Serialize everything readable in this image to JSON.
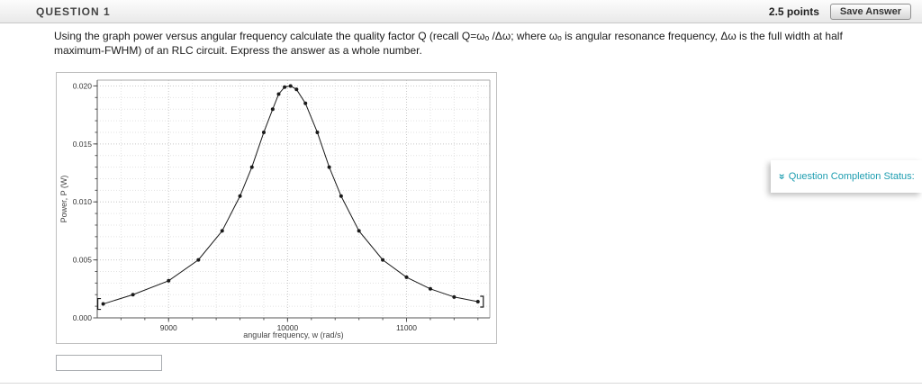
{
  "header": {
    "title": "QUESTION 1",
    "points": "2.5 points",
    "save_button": "Save Answer"
  },
  "question": {
    "text": "Using the graph power versus angular frequency calculate the quality factor Q (recall Q=ωₒ /Δω; where ωₒ is angular resonance  frequency, Δω is the full width at half maximum-FWHM) of an RLC circuit. Express the answer as a whole number."
  },
  "chart_data": {
    "type": "line",
    "title": "",
    "xlabel": "angular frequency, w (rad/s)",
    "ylabel": "Power, P (W)",
    "xlim": [
      8400,
      11700
    ],
    "ylim": [
      0,
      0.0205
    ],
    "grid": true,
    "x_ticks": {
      "values": [
        9000,
        10000,
        11000
      ],
      "labels": [
        "9000",
        "10000",
        "11000"
      ]
    },
    "y_ticks": {
      "values": [
        0,
        0.005,
        0.01,
        0.015,
        0.02
      ],
      "labels": [
        "0.000",
        "0.005",
        "0.010",
        "0.015",
        "0.020"
      ]
    },
    "x_minor_step": 200,
    "y_minor_step": 0.001,
    "range_brackets": true,
    "series": [
      {
        "name": "power",
        "marker": "dot",
        "color": "#1a1a1a",
        "points": [
          [
            8450,
            0.0012
          ],
          [
            8700,
            0.002
          ],
          [
            9000,
            0.0032
          ],
          [
            9250,
            0.005
          ],
          [
            9450,
            0.0075
          ],
          [
            9600,
            0.0105
          ],
          [
            9700,
            0.013
          ],
          [
            9800,
            0.016
          ],
          [
            9875,
            0.018
          ],
          [
            9925,
            0.0193
          ],
          [
            9975,
            0.0199
          ],
          [
            10025,
            0.02
          ],
          [
            10075,
            0.0197
          ],
          [
            10150,
            0.0185
          ],
          [
            10250,
            0.016
          ],
          [
            10350,
            0.013
          ],
          [
            10450,
            0.0105
          ],
          [
            10600,
            0.0075
          ],
          [
            10800,
            0.005
          ],
          [
            11000,
            0.0035
          ],
          [
            11200,
            0.0025
          ],
          [
            11400,
            0.0018
          ],
          [
            11600,
            0.0014
          ]
        ]
      }
    ],
    "resonance_frequency": 10000,
    "peak_power": 0.02
  },
  "answer": {
    "value": ""
  },
  "completion_panel": {
    "label": "Question Completion Status:",
    "icon": "double-chevron-icon",
    "icon_glyph": "«",
    "color": "#1d9db0"
  }
}
